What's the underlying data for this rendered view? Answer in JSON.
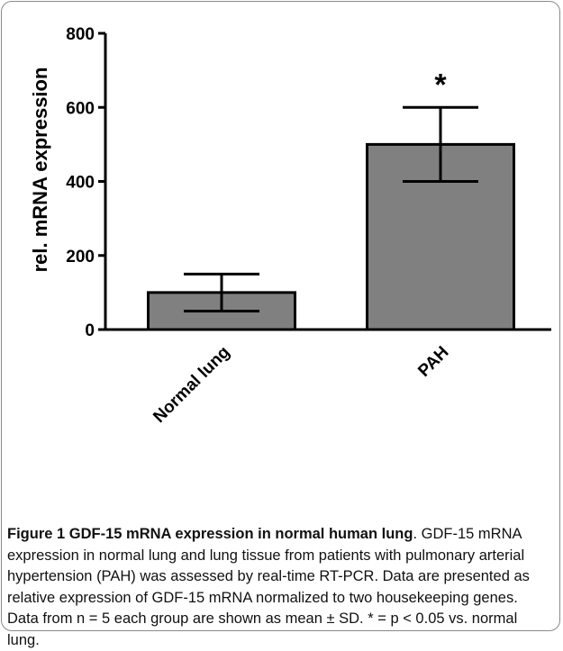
{
  "chart_data": {
    "type": "bar",
    "categories": [
      "Normal lung",
      "PAH"
    ],
    "values": [
      100,
      500
    ],
    "errors": [
      50,
      100
    ],
    "annotations": [
      "",
      "*"
    ],
    "ylabel": "rel. mRNA expression",
    "xlabel": "",
    "title": "",
    "ylim": [
      0,
      800
    ],
    "yticks": [
      0,
      200,
      400,
      600,
      800
    ],
    "grid": false,
    "bar_color": "#808080",
    "edge_color": "#000000"
  },
  "caption": {
    "title": "Figure 1 GDF-15 mRNA expression in normal human lung",
    "title_end": ".",
    "body": "GDF-15 mRNA expression in normal lung and lung tissue from patients with pulmonary arterial hypertension (PAH) was assessed by real-time RT-PCR. Data are presented as relative expression of GDF-15 mRNA normalized to two housekeeping genes. Data from n = 5 each group are shown as mean ± SD. * = p < 0.05 vs. normal lung."
  }
}
